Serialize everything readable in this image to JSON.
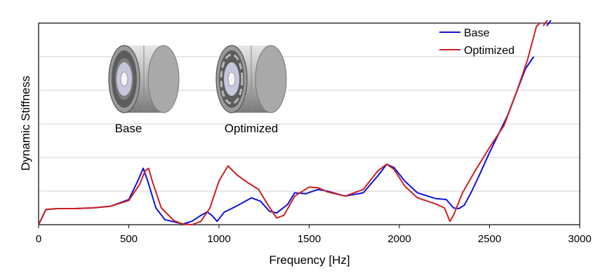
{
  "chart_data": {
    "type": "line",
    "xlabel": "Frequency [Hz]",
    "ylabel": "Dynamic Stiffness",
    "xlim": [
      0,
      3000
    ],
    "ylim": [
      0,
      6
    ],
    "x_ticks": [
      "0",
      "500",
      "1000",
      "1500",
      "2000",
      "2500",
      "3000"
    ],
    "y_gridlines": [
      1,
      2,
      3,
      4,
      5
    ],
    "grid": true,
    "legend": "top-right",
    "colors": {
      "Base": "#1010dd",
      "Optimized": "#cc2020"
    },
    "series": [
      {
        "name": "Base",
        "points": [
          [
            0,
            0
          ],
          [
            40,
            0.45
          ],
          [
            100,
            0.48
          ],
          [
            200,
            0.48
          ],
          [
            300,
            0.5
          ],
          [
            400,
            0.55
          ],
          [
            500,
            0.75
          ],
          [
            550,
            1.3
          ],
          [
            580,
            1.68
          ],
          [
            605,
            1.3
          ],
          [
            650,
            0.5
          ],
          [
            700,
            0.15
          ],
          [
            800,
            0.02
          ],
          [
            850,
            0.1
          ],
          [
            900,
            0.28
          ],
          [
            935,
            0.38
          ],
          [
            960,
            0.28
          ],
          [
            990,
            0.1
          ],
          [
            1030,
            0.38
          ],
          [
            1070,
            0.48
          ],
          [
            1120,
            0.62
          ],
          [
            1180,
            0.8
          ],
          [
            1230,
            0.7
          ],
          [
            1280,
            0.4
          ],
          [
            1320,
            0.35
          ],
          [
            1380,
            0.6
          ],
          [
            1420,
            0.95
          ],
          [
            1480,
            0.92
          ],
          [
            1550,
            1.05
          ],
          [
            1600,
            1.0
          ],
          [
            1700,
            0.85
          ],
          [
            1800,
            0.95
          ],
          [
            1880,
            1.45
          ],
          [
            1930,
            1.8
          ],
          [
            1970,
            1.7
          ],
          [
            2030,
            1.3
          ],
          [
            2100,
            0.95
          ],
          [
            2200,
            0.78
          ],
          [
            2260,
            0.75
          ],
          [
            2300,
            0.5
          ],
          [
            2330,
            0.48
          ],
          [
            2360,
            0.58
          ],
          [
            2400,
            0.98
          ],
          [
            2450,
            1.55
          ],
          [
            2500,
            2.15
          ],
          [
            2550,
            2.7
          ],
          [
            2600,
            3.25
          ],
          [
            2650,
            3.95
          ],
          [
            2700,
            4.65
          ],
          [
            2745,
            5.0
          ]
        ]
      },
      {
        "name": "Optimized",
        "points": [
          [
            0,
            0
          ],
          [
            40,
            0.45
          ],
          [
            100,
            0.48
          ],
          [
            200,
            0.48
          ],
          [
            300,
            0.5
          ],
          [
            400,
            0.55
          ],
          [
            500,
            0.72
          ],
          [
            560,
            1.2
          ],
          [
            590,
            1.6
          ],
          [
            610,
            1.68
          ],
          [
            630,
            1.3
          ],
          [
            680,
            0.5
          ],
          [
            750,
            0.12
          ],
          [
            800,
            0.02
          ],
          [
            850,
            0.0
          ],
          [
            900,
            0.1
          ],
          [
            950,
            0.5
          ],
          [
            1000,
            1.3
          ],
          [
            1050,
            1.75
          ],
          [
            1100,
            1.48
          ],
          [
            1160,
            1.25
          ],
          [
            1220,
            1.05
          ],
          [
            1270,
            0.6
          ],
          [
            1320,
            0.2
          ],
          [
            1360,
            0.28
          ],
          [
            1420,
            0.85
          ],
          [
            1500,
            1.12
          ],
          [
            1550,
            1.1
          ],
          [
            1600,
            0.98
          ],
          [
            1700,
            0.85
          ],
          [
            1800,
            1.05
          ],
          [
            1880,
            1.6
          ],
          [
            1930,
            1.8
          ],
          [
            1970,
            1.65
          ],
          [
            2030,
            1.15
          ],
          [
            2100,
            0.8
          ],
          [
            2200,
            0.62
          ],
          [
            2250,
            0.5
          ],
          [
            2280,
            0.1
          ],
          [
            2300,
            0.28
          ],
          [
            2350,
            0.95
          ],
          [
            2420,
            1.6
          ],
          [
            2500,
            2.3
          ],
          [
            2580,
            2.95
          ],
          [
            2650,
            3.95
          ],
          [
            2710,
            4.9
          ],
          [
            2760,
            5.9
          ],
          [
            2780,
            6.0
          ]
        ]
      }
    ],
    "insets": [
      {
        "label": "Base"
      },
      {
        "label": "Optimized"
      }
    ]
  }
}
